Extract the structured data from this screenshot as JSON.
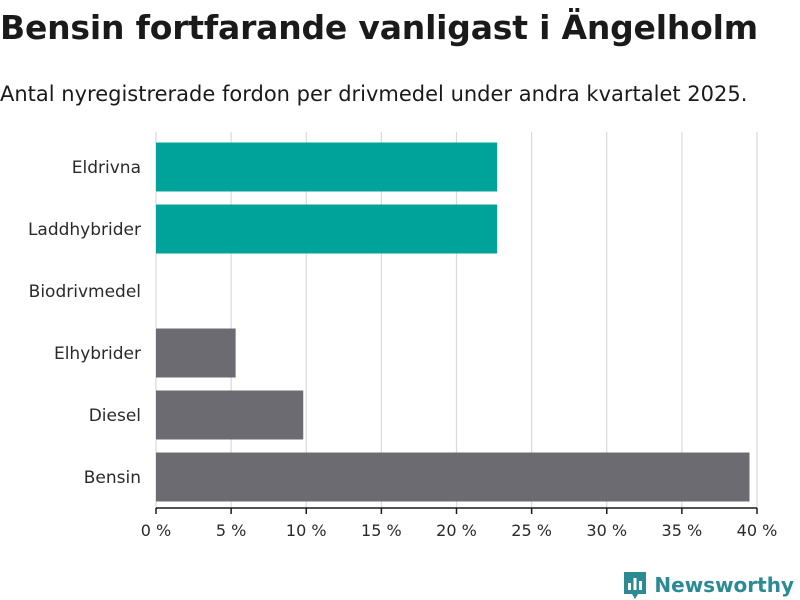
{
  "title": "Bensin fortfarande vanligast i Ängelholm",
  "subtitle": "Antal nyregistrerade fordon per drivmedel under andra kvartalet 2025.",
  "brand": {
    "name": "Newsworthy",
    "icon": "bar-chart-speech-bubble-icon",
    "color": "#2b8a94"
  },
  "colors": {
    "highlight": "#00a39a",
    "default": "#6d6b72",
    "grid": "#d9d9d9",
    "axis": "#1a1a1a"
  },
  "chart_data": {
    "type": "bar",
    "orientation": "horizontal",
    "categories": [
      "Eldrivna",
      "Laddhybrider",
      "Biodrivmedel",
      "Elhybrider",
      "Diesel",
      "Bensin"
    ],
    "values": [
      22.7,
      22.7,
      0,
      5.3,
      9.8,
      39.5
    ],
    "highlighted": [
      true,
      true,
      false,
      false,
      false,
      false
    ],
    "xticks": [
      0,
      5,
      10,
      15,
      20,
      25,
      30,
      35,
      40
    ],
    "tick_suffix": " %",
    "xlim": [
      0,
      40
    ],
    "grid": true,
    "legend": "none"
  }
}
